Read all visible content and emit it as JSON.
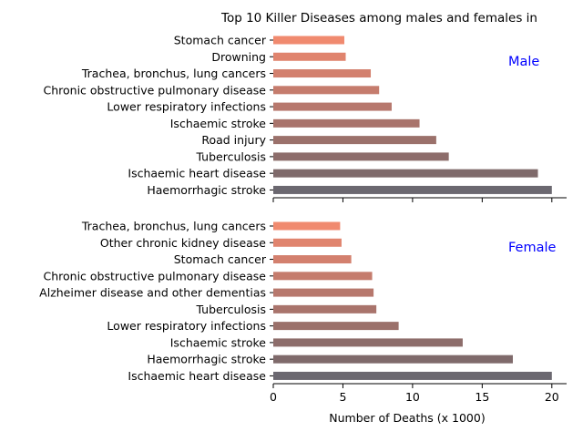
{
  "chart_data": {
    "type": "bar",
    "orientation": "horizontal",
    "title": "Top 10 Killer Diseases among males and females in",
    "xlabel": "Number of Deaths (x 1000)",
    "xlim": [
      0,
      21
    ],
    "xticks": [
      0,
      5,
      10,
      15,
      20
    ],
    "shared_x": true,
    "grid": false,
    "panel_label_color": "#0000ff",
    "panels": [
      {
        "label": "Male",
        "categories": [
          "Stomach cancer",
          "Drowning",
          "Trachea, bronchus, lung cancers",
          "Chronic obstructive pulmonary disease",
          "Lower respiratory infections",
          "Ischaemic stroke",
          "Road injury",
          "Tuberculosis",
          "Ischaemic heart disease",
          "Haemorrhagic stroke"
        ],
        "values": [
          5.1,
          5.2,
          7.0,
          7.6,
          8.5,
          10.5,
          11.7,
          12.6,
          19.0,
          20.0
        ]
      },
      {
        "label": "Female",
        "categories": [
          "Trachea, bronchus, lung cancers",
          "Other chronic kidney disease",
          "Stomach cancer",
          "Chronic obstructive pulmonary disease",
          "Alzheimer disease and other dementias",
          "Tuberculosis",
          "Lower respiratory infections",
          "Ischaemic stroke",
          "Haemorrhagic stroke",
          "Ischaemic heart disease"
        ],
        "values": [
          4.8,
          4.9,
          5.6,
          7.1,
          7.2,
          7.4,
          9.0,
          13.6,
          17.2,
          20.0
        ]
      }
    ],
    "bar_colors": [
      "#f08a6f",
      "#e0846e",
      "#d3806e",
      "#c57c6d",
      "#b7786d",
      "#a9746c",
      "#9b716b",
      "#8d6d6b",
      "#7f6a6b",
      "#6b6870"
    ]
  }
}
